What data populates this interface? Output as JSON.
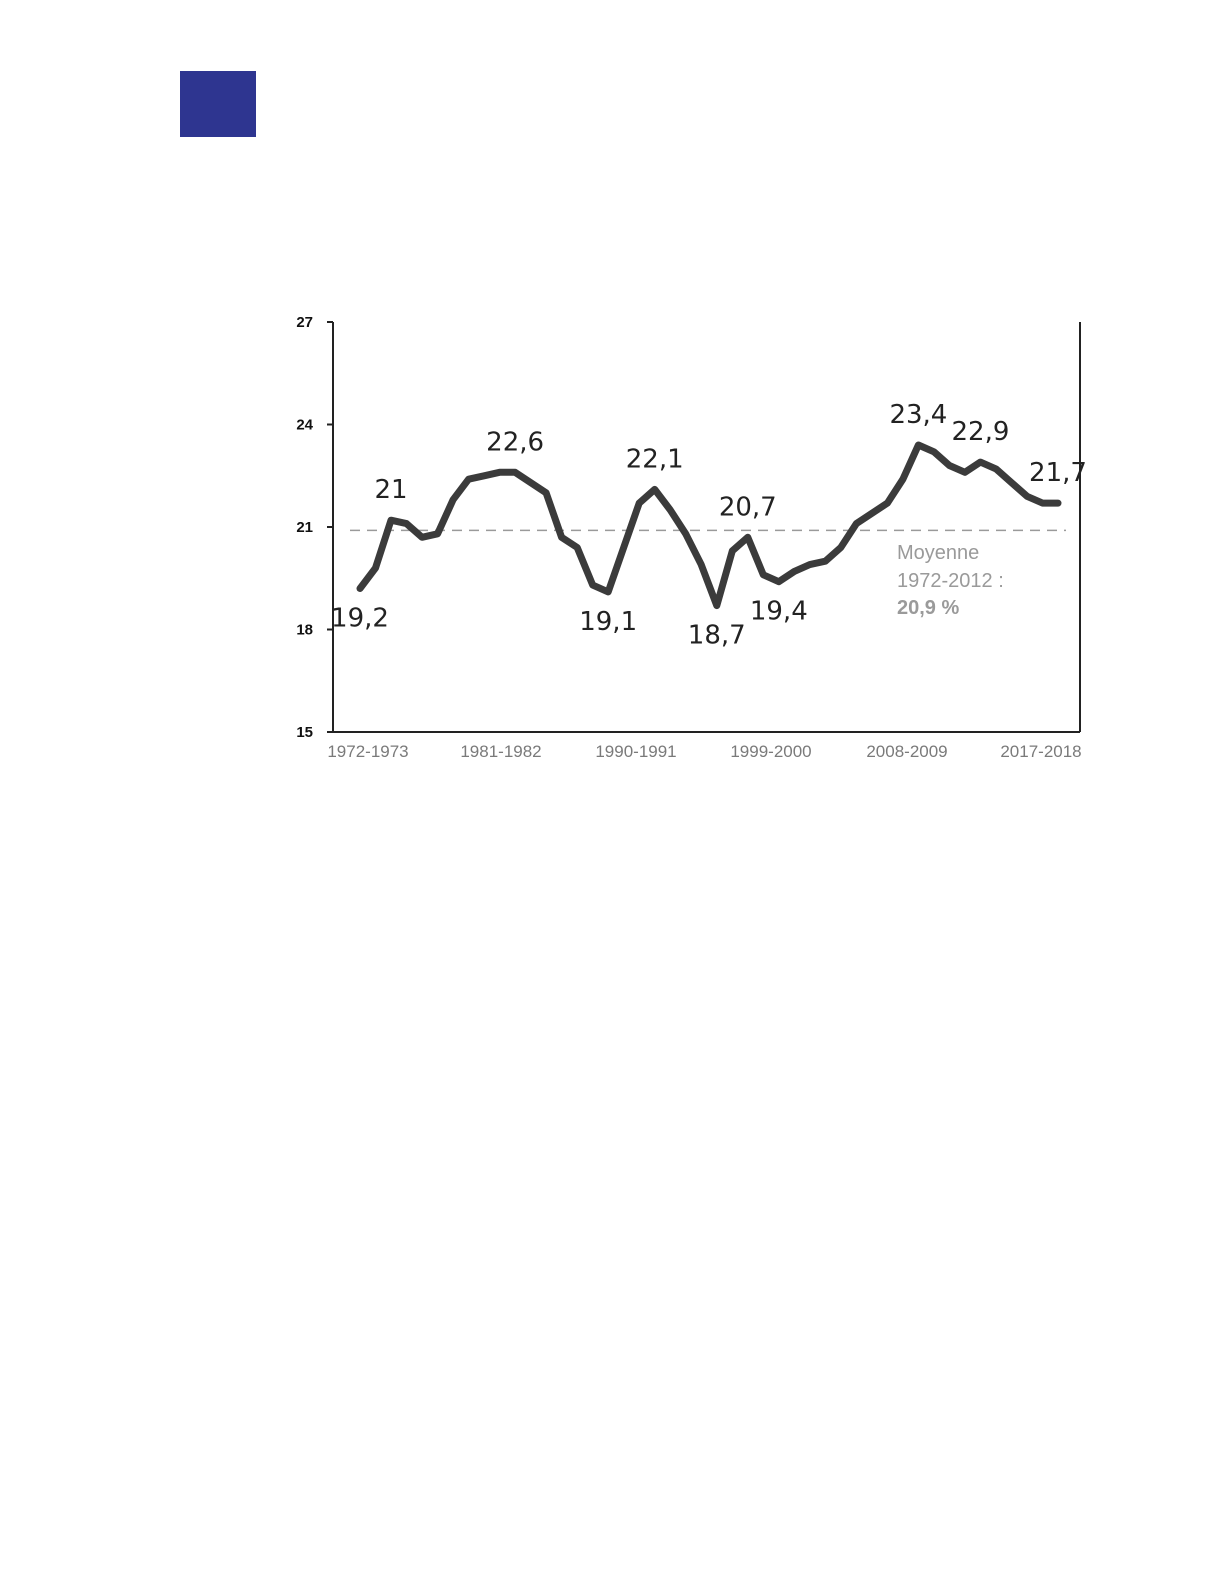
{
  "colors": {
    "brand_square": "#2e3590",
    "line": "#3b3b3b",
    "average_line": "#9a9a9a",
    "axis": "#222222"
  },
  "chart_data": {
    "type": "line",
    "title": "",
    "xlabel": "",
    "ylabel": "",
    "ylim": [
      15,
      27
    ],
    "y_ticks": [
      "15",
      "18",
      "21",
      "24",
      "27"
    ],
    "x_tick_labels": [
      "1972-1973",
      "1981-1982",
      "1990-1991",
      "1999-2000",
      "2008-2009",
      "2017-2018"
    ],
    "grid": false,
    "series": [
      {
        "values": [
          19.2,
          19.8,
          21.2,
          21.1,
          20.7,
          20.8,
          21.8,
          22.4,
          22.5,
          22.6,
          22.6,
          22.3,
          22.0,
          20.7,
          20.4,
          19.3,
          19.1,
          20.4,
          21.7,
          22.1,
          21.5,
          20.8,
          19.9,
          18.7,
          20.3,
          20.7,
          19.6,
          19.4,
          19.7,
          19.9,
          20.0,
          20.4,
          21.1,
          21.4,
          21.7,
          22.4,
          23.4,
          23.2,
          22.8,
          22.6,
          22.9,
          22.7,
          22.3,
          21.9,
          21.7,
          21.7
        ]
      }
    ],
    "data_labels": [
      {
        "index": 0,
        "text": "19,2",
        "pos": "below"
      },
      {
        "index": 2,
        "text": "21",
        "pos": "above"
      },
      {
        "index": 10,
        "text": "22,6",
        "pos": "above"
      },
      {
        "index": 16,
        "text": "19,1",
        "pos": "below"
      },
      {
        "index": 19,
        "text": "22,1",
        "pos": "above"
      },
      {
        "index": 23,
        "text": "18,7",
        "pos": "below"
      },
      {
        "index": 25,
        "text": "20,7",
        "pos": "above"
      },
      {
        "index": 27,
        "text": "19,4",
        "pos": "below"
      },
      {
        "index": 36,
        "text": "23,4",
        "pos": "above"
      },
      {
        "index": 40,
        "text": "22,9",
        "pos": "above"
      },
      {
        "index": 45,
        "text": "21,7",
        "pos": "above"
      }
    ],
    "average": {
      "value": 20.9,
      "label_line1": "Moyenne",
      "label_line2": "1972-2012 :",
      "label_line3": "20,9 %"
    }
  }
}
